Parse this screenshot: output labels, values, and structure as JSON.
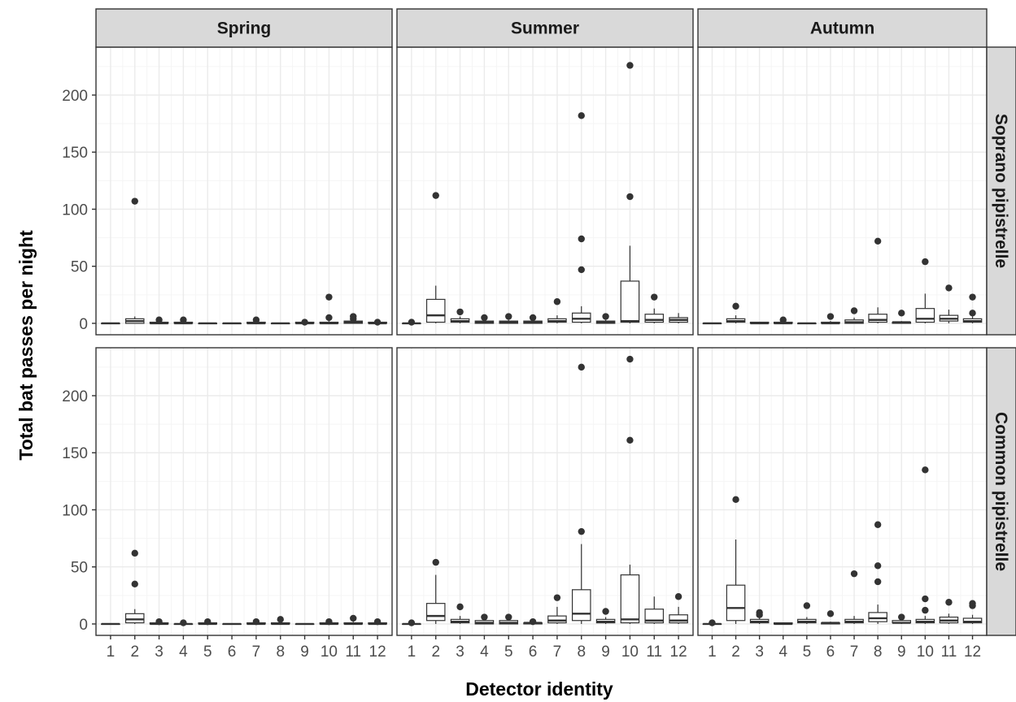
{
  "chart_data": {
    "type": "boxplot",
    "xlabel": "Detector identity",
    "ylabel": "Total bat passes per night",
    "x_categories": [
      "1",
      "2",
      "3",
      "4",
      "5",
      "6",
      "7",
      "8",
      "9",
      "10",
      "11",
      "12"
    ],
    "y_ticks": [
      0,
      50,
      100,
      150,
      200
    ],
    "ylim": [
      -10,
      242
    ],
    "grid": true,
    "columns": [
      "Spring",
      "Summer",
      "Autumn"
    ],
    "rows": [
      "Soprano pipistrelle",
      "Common pipistrelle"
    ],
    "panels": [
      {
        "season": "Spring",
        "species": "Soprano pipistrelle",
        "boxes": [
          {
            "detector": "1",
            "min": 0,
            "q1": 0,
            "median": 0,
            "q3": 0,
            "max": 0,
            "outliers": []
          },
          {
            "detector": "2",
            "min": 0,
            "q1": 0,
            "median": 2,
            "q3": 4,
            "max": 6,
            "outliers": [
              107
            ]
          },
          {
            "detector": "3",
            "min": 0,
            "q1": 0,
            "median": 0,
            "q3": 1,
            "max": 2,
            "outliers": [
              3
            ]
          },
          {
            "detector": "4",
            "min": 0,
            "q1": 0,
            "median": 0,
            "q3": 1,
            "max": 2,
            "outliers": [
              3
            ]
          },
          {
            "detector": "5",
            "min": 0,
            "q1": 0,
            "median": 0,
            "q3": 0,
            "max": 0,
            "outliers": []
          },
          {
            "detector": "6",
            "min": 0,
            "q1": 0,
            "median": 0,
            "q3": 0,
            "max": 0,
            "outliers": []
          },
          {
            "detector": "7",
            "min": 0,
            "q1": 0,
            "median": 0,
            "q3": 1,
            "max": 2,
            "outliers": [
              3
            ]
          },
          {
            "detector": "8",
            "min": 0,
            "q1": 0,
            "median": 0,
            "q3": 0,
            "max": 0,
            "outliers": []
          },
          {
            "detector": "9",
            "min": 0,
            "q1": 0,
            "median": 0,
            "q3": 1,
            "max": 1,
            "outliers": [
              1
            ]
          },
          {
            "detector": "10",
            "min": 0,
            "q1": 0,
            "median": 0,
            "q3": 1,
            "max": 2,
            "outliers": [
              5,
              23
            ]
          },
          {
            "detector": "11",
            "min": 0,
            "q1": 0,
            "median": 1,
            "q3": 2,
            "max": 3,
            "outliers": [
              4,
              6
            ]
          },
          {
            "detector": "12",
            "min": 0,
            "q1": 0,
            "median": 0,
            "q3": 1,
            "max": 1,
            "outliers": [
              1
            ]
          }
        ]
      },
      {
        "season": "Summer",
        "species": "Soprano pipistrelle",
        "boxes": [
          {
            "detector": "1",
            "min": 0,
            "q1": 0,
            "median": 0,
            "q3": 0,
            "max": 0,
            "outliers": [
              1
            ]
          },
          {
            "detector": "2",
            "min": 0,
            "q1": 1,
            "median": 7,
            "q3": 21,
            "max": 33,
            "outliers": [
              112
            ]
          },
          {
            "detector": "3",
            "min": 0,
            "q1": 1,
            "median": 2,
            "q3": 4,
            "max": 6,
            "outliers": [
              10
            ]
          },
          {
            "detector": "4",
            "min": 0,
            "q1": 0,
            "median": 1,
            "q3": 2,
            "max": 3,
            "outliers": [
              5
            ]
          },
          {
            "detector": "5",
            "min": 0,
            "q1": 0,
            "median": 1,
            "q3": 2,
            "max": 3,
            "outliers": [
              6
            ]
          },
          {
            "detector": "6",
            "min": 0,
            "q1": 0,
            "median": 1,
            "q3": 2,
            "max": 3,
            "outliers": [
              5
            ]
          },
          {
            "detector": "7",
            "min": 0,
            "q1": 1,
            "median": 2,
            "q3": 4,
            "max": 7,
            "outliers": [
              19
            ]
          },
          {
            "detector": "8",
            "min": 0,
            "q1": 1,
            "median": 4,
            "q3": 9,
            "max": 15,
            "outliers": [
              47,
              74,
              182
            ]
          },
          {
            "detector": "9",
            "min": 0,
            "q1": 0,
            "median": 1,
            "q3": 2,
            "max": 3,
            "outliers": [
              6
            ]
          },
          {
            "detector": "10",
            "min": 0,
            "q1": 1,
            "median": 2,
            "q3": 37,
            "max": 68,
            "outliers": [
              111,
              226
            ]
          },
          {
            "detector": "11",
            "min": 0,
            "q1": 1,
            "median": 3,
            "q3": 8,
            "max": 13,
            "outliers": [
              23
            ]
          },
          {
            "detector": "12",
            "min": 0,
            "q1": 1,
            "median": 3,
            "q3": 5,
            "max": 9,
            "outliers": []
          }
        ]
      },
      {
        "season": "Autumn",
        "species": "Soprano pipistrelle",
        "boxes": [
          {
            "detector": "1",
            "min": 0,
            "q1": 0,
            "median": 0,
            "q3": 0,
            "max": 0,
            "outliers": []
          },
          {
            "detector": "2",
            "min": 0,
            "q1": 1,
            "median": 2,
            "q3": 4,
            "max": 7,
            "outliers": [
              15
            ]
          },
          {
            "detector": "3",
            "min": 0,
            "q1": 0,
            "median": 0,
            "q3": 1,
            "max": 1,
            "outliers": []
          },
          {
            "detector": "4",
            "min": 0,
            "q1": 0,
            "median": 0,
            "q3": 1,
            "max": 2,
            "outliers": [
              3
            ]
          },
          {
            "detector": "5",
            "min": 0,
            "q1": 0,
            "median": 0,
            "q3": 0,
            "max": 0,
            "outliers": []
          },
          {
            "detector": "6",
            "min": 0,
            "q1": 0,
            "median": 0,
            "q3": 1,
            "max": 2,
            "outliers": [
              6
            ]
          },
          {
            "detector": "7",
            "min": 0,
            "q1": 0,
            "median": 1,
            "q3": 3,
            "max": 5,
            "outliers": [
              11
            ]
          },
          {
            "detector": "8",
            "min": 0,
            "q1": 1,
            "median": 3,
            "q3": 8,
            "max": 14,
            "outliers": [
              72
            ]
          },
          {
            "detector": "9",
            "min": 0,
            "q1": 0,
            "median": 1,
            "q3": 1,
            "max": 2,
            "outliers": [
              9
            ]
          },
          {
            "detector": "10",
            "min": 0,
            "q1": 1,
            "median": 4,
            "q3": 13,
            "max": 26,
            "outliers": [
              54
            ]
          },
          {
            "detector": "11",
            "min": 0,
            "q1": 2,
            "median": 4,
            "q3": 7,
            "max": 12,
            "outliers": [
              31
            ]
          },
          {
            "detector": "12",
            "min": 0,
            "q1": 1,
            "median": 2,
            "q3": 4,
            "max": 6,
            "outliers": [
              9,
              23
            ]
          }
        ]
      },
      {
        "season": "Spring",
        "species": "Common pipistrelle",
        "boxes": [
          {
            "detector": "1",
            "min": 0,
            "q1": 0,
            "median": 0,
            "q3": 0,
            "max": 0,
            "outliers": []
          },
          {
            "detector": "2",
            "min": 0,
            "q1": 1,
            "median": 4,
            "q3": 9,
            "max": 13,
            "outliers": [
              35,
              62
            ]
          },
          {
            "detector": "3",
            "min": 0,
            "q1": 0,
            "median": 0,
            "q3": 1,
            "max": 2,
            "outliers": [
              2
            ]
          },
          {
            "detector": "4",
            "min": 0,
            "q1": 0,
            "median": 0,
            "q3": 0,
            "max": 1,
            "outliers": [
              1
            ]
          },
          {
            "detector": "5",
            "min": 0,
            "q1": 0,
            "median": 0,
            "q3": 1,
            "max": 2,
            "outliers": [
              2
            ]
          },
          {
            "detector": "6",
            "min": 0,
            "q1": 0,
            "median": 0,
            "q3": 0,
            "max": 0,
            "outliers": []
          },
          {
            "detector": "7",
            "min": 0,
            "q1": 0,
            "median": 0,
            "q3": 1,
            "max": 2,
            "outliers": [
              2
            ]
          },
          {
            "detector": "8",
            "min": 0,
            "q1": 0,
            "median": 0,
            "q3": 1,
            "max": 2,
            "outliers": [
              4
            ]
          },
          {
            "detector": "9",
            "min": 0,
            "q1": 0,
            "median": 0,
            "q3": 0,
            "max": 0,
            "outliers": []
          },
          {
            "detector": "10",
            "min": 0,
            "q1": 0,
            "median": 0,
            "q3": 1,
            "max": 2,
            "outliers": [
              2
            ]
          },
          {
            "detector": "11",
            "min": 0,
            "q1": 0,
            "median": 0,
            "q3": 1,
            "max": 2,
            "outliers": [
              5
            ]
          },
          {
            "detector": "12",
            "min": 0,
            "q1": 0,
            "median": 0,
            "q3": 1,
            "max": 2,
            "outliers": [
              2
            ]
          }
        ]
      },
      {
        "season": "Summer",
        "species": "Common pipistrelle",
        "boxes": [
          {
            "detector": "1",
            "min": 0,
            "q1": 0,
            "median": 0,
            "q3": 0,
            "max": 0,
            "outliers": [
              1
            ]
          },
          {
            "detector": "2",
            "min": 0,
            "q1": 3,
            "median": 7,
            "q3": 18,
            "max": 43,
            "outliers": [
              54
            ]
          },
          {
            "detector": "3",
            "min": 0,
            "q1": 1,
            "median": 2,
            "q3": 4,
            "max": 7,
            "outliers": [
              15
            ]
          },
          {
            "detector": "4",
            "min": 0,
            "q1": 0,
            "median": 1,
            "q3": 3,
            "max": 4,
            "outliers": [
              6
            ]
          },
          {
            "detector": "5",
            "min": 0,
            "q1": 0,
            "median": 1,
            "q3": 3,
            "max": 4,
            "outliers": [
              6
            ]
          },
          {
            "detector": "6",
            "min": 0,
            "q1": 0,
            "median": 1,
            "q3": 1,
            "max": 2,
            "outliers": [
              2
            ]
          },
          {
            "detector": "7",
            "min": 0,
            "q1": 1,
            "median": 3,
            "q3": 7,
            "max": 15,
            "outliers": [
              23
            ]
          },
          {
            "detector": "8",
            "min": 0,
            "q1": 3,
            "median": 9,
            "q3": 30,
            "max": 70,
            "outliers": [
              81,
              225
            ]
          },
          {
            "detector": "9",
            "min": 0,
            "q1": 1,
            "median": 2,
            "q3": 4,
            "max": 6,
            "outliers": [
              11
            ]
          },
          {
            "detector": "10",
            "min": 0,
            "q1": 1,
            "median": 4,
            "q3": 43,
            "max": 52,
            "outliers": [
              161,
              232
            ]
          },
          {
            "detector": "11",
            "min": 0,
            "q1": 1,
            "median": 3,
            "q3": 13,
            "max": 24,
            "outliers": []
          },
          {
            "detector": "12",
            "min": 0,
            "q1": 1,
            "median": 3,
            "q3": 8,
            "max": 15,
            "outliers": [
              24
            ]
          }
        ]
      },
      {
        "season": "Autumn",
        "species": "Common pipistrelle",
        "boxes": [
          {
            "detector": "1",
            "min": 0,
            "q1": 0,
            "median": 0,
            "q3": 0,
            "max": 0,
            "outliers": [
              1
            ]
          },
          {
            "detector": "2",
            "min": 0,
            "q1": 3,
            "median": 14,
            "q3": 34,
            "max": 74,
            "outliers": [
              109
            ]
          },
          {
            "detector": "3",
            "min": 0,
            "q1": 1,
            "median": 2,
            "q3": 4,
            "max": 6,
            "outliers": [
              8,
              10
            ]
          },
          {
            "detector": "4",
            "min": 0,
            "q1": 0,
            "median": 0,
            "q3": 1,
            "max": 1,
            "outliers": []
          },
          {
            "detector": "5",
            "min": 0,
            "q1": 1,
            "median": 2,
            "q3": 4,
            "max": 6,
            "outliers": [
              16
            ]
          },
          {
            "detector": "6",
            "min": 0,
            "q1": 0,
            "median": 1,
            "q3": 1,
            "max": 2,
            "outliers": [
              9
            ]
          },
          {
            "detector": "7",
            "min": 0,
            "q1": 1,
            "median": 2,
            "q3": 4,
            "max": 7,
            "outliers": [
              44
            ]
          },
          {
            "detector": "8",
            "min": 0,
            "q1": 2,
            "median": 5,
            "q3": 10,
            "max": 17,
            "outliers": [
              37,
              51,
              87
            ]
          },
          {
            "detector": "9",
            "min": 0,
            "q1": 1,
            "median": 1,
            "q3": 3,
            "max": 4,
            "outliers": [
              6
            ]
          },
          {
            "detector": "10",
            "min": 0,
            "q1": 1,
            "median": 2,
            "q3": 4,
            "max": 7,
            "outliers": [
              12,
              22,
              135
            ]
          },
          {
            "detector": "11",
            "min": 0,
            "q1": 1,
            "median": 3,
            "q3": 6,
            "max": 9,
            "outliers": [
              19
            ]
          },
          {
            "detector": "12",
            "min": 0,
            "q1": 1,
            "median": 2,
            "q3": 5,
            "max": 8,
            "outliers": [
              16,
              18
            ]
          }
        ]
      }
    ]
  },
  "colors": {
    "panel_border": "#333333",
    "strip_fill": "#d9d9d9",
    "grid_major": "#ebebeb",
    "grid_minor": "#f5f5f5",
    "box_line": "#333333",
    "outlier": "#333333",
    "tick_text": "#4d4d4d",
    "title_text": "#000000"
  }
}
